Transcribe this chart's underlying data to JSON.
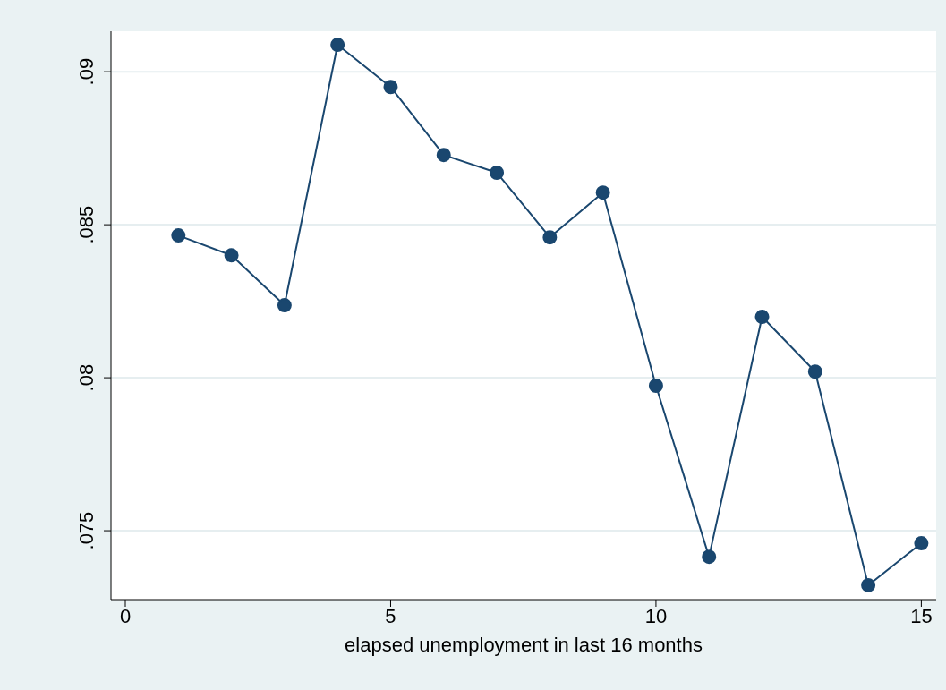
{
  "chart_data": {
    "type": "line",
    "xlabel": "elapsed unemployment in last 16 months",
    "x": [
      1,
      2,
      3,
      4,
      5,
      6,
      7,
      8,
      9,
      10,
      11,
      12,
      13,
      14,
      15
    ],
    "series": [
      {
        "color": "#1a476f",
        "values": [
          0.08465,
          0.084,
          0.08237,
          0.09088,
          0.0895,
          0.08728,
          0.0867,
          0.08459,
          0.08605,
          0.07974,
          0.07415,
          0.08199,
          0.0802,
          0.07322,
          0.07459
        ]
      }
    ],
    "xlim": [
      -0.27,
      15.28
    ],
    "xticks": [
      0,
      5,
      10,
      15
    ],
    "ylim": [
      0.07275,
      0.09132
    ],
    "yticks": [
      {
        "value": 0.075,
        "label": ".075"
      },
      {
        "value": 0.08,
        "label": ".08"
      },
      {
        "value": 0.085,
        "label": ".085"
      },
      {
        "value": 0.09,
        "label": ".09"
      }
    ],
    "grid": "y",
    "marker": "circle",
    "line_style": "solid"
  }
}
